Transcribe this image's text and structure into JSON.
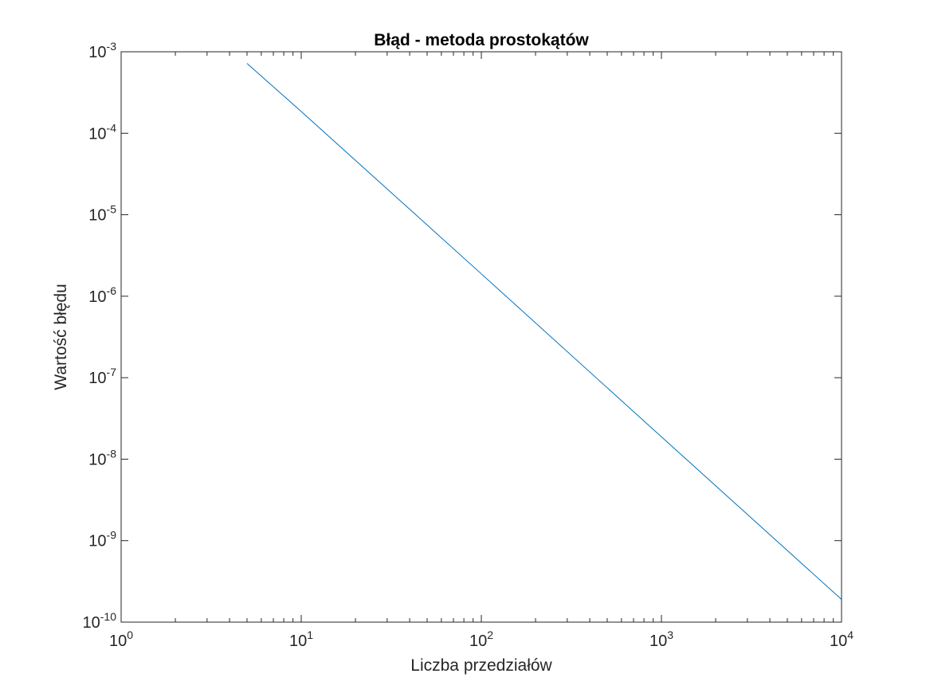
{
  "chart_data": {
    "type": "line",
    "title": "Błąd - metoda prostokątów",
    "xlabel": "Liczba przedziałów",
    "ylabel": "Wartość błędu",
    "xscale": "log",
    "yscale": "log",
    "xlim": [
      1,
      10000
    ],
    "ylim": [
      1e-10,
      0.001
    ],
    "grid": false,
    "box": true,
    "x_ticks": [
      {
        "value": 1,
        "base": "10",
        "exp": "0"
      },
      {
        "value": 10,
        "base": "10",
        "exp": "1"
      },
      {
        "value": 100,
        "base": "10",
        "exp": "2"
      },
      {
        "value": 1000,
        "base": "10",
        "exp": "3"
      },
      {
        "value": 10000,
        "base": "10",
        "exp": "4"
      }
    ],
    "y_ticks": [
      {
        "value": 1e-10,
        "base": "10",
        "exp": "-10"
      },
      {
        "value": 1e-09,
        "base": "10",
        "exp": "-9"
      },
      {
        "value": 1e-08,
        "base": "10",
        "exp": "-8"
      },
      {
        "value": 1e-07,
        "base": "10",
        "exp": "-7"
      },
      {
        "value": 1e-06,
        "base": "10",
        "exp": "-6"
      },
      {
        "value": 1e-05,
        "base": "10",
        "exp": "-5"
      },
      {
        "value": 0.0001,
        "base": "10",
        "exp": "-4"
      },
      {
        "value": 0.001,
        "base": "10",
        "exp": "-3"
      }
    ],
    "series": [
      {
        "color": "#0072BD",
        "x": [
          5,
          10,
          100,
          1000,
          10000
        ],
        "y": [
          0.00072,
          0.000185,
          1.88e-06,
          1.88e-08,
          1.9e-10
        ]
      }
    ]
  }
}
